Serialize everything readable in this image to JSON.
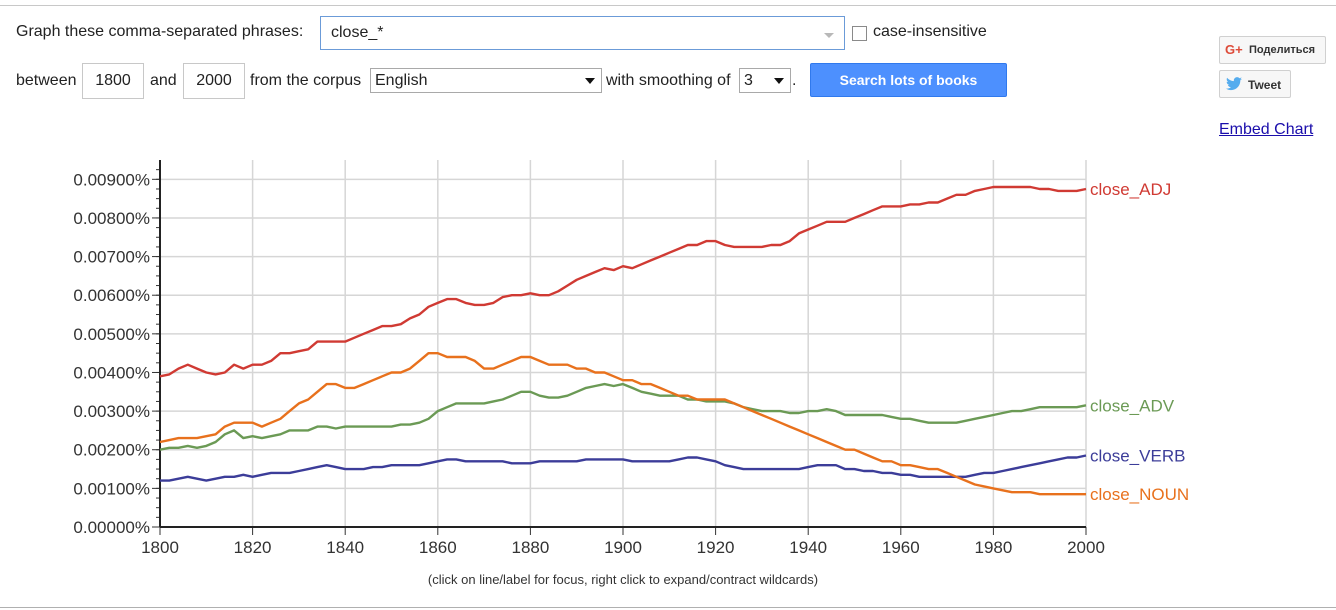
{
  "form": {
    "phrases_label": "Graph these comma-separated phrases:",
    "phrases_value": "close_*",
    "case_insensitive_label": "case-insensitive",
    "between_label": "between",
    "year_start": "1800",
    "and_label": "and",
    "year_end": "2000",
    "corpus_label": "from the corpus",
    "corpus_value": "English",
    "smoothing_label": "with smoothing of",
    "smoothing_value": "3",
    "period": ".",
    "search_button": "Search lots of books"
  },
  "share": {
    "gplus_icon_text": "G+",
    "gplus_label": "Поделиться",
    "tweet_label": "Tweet",
    "embed_label": "Embed Chart"
  },
  "footnote": "(click on line/label for focus, right click to expand/contract wildcards)",
  "chart_data": {
    "type": "line",
    "xlim": [
      1800,
      2000
    ],
    "ylim": [
      0,
      0.0095
    ],
    "x_ticks": [
      1800,
      1820,
      1840,
      1860,
      1880,
      1900,
      1920,
      1940,
      1960,
      1980,
      2000
    ],
    "x_tick_labels": [
      "1800",
      "1820",
      "1840",
      "1860",
      "1880",
      "1900",
      "1920",
      "1940",
      "1960",
      "1980",
      "2000"
    ],
    "y_ticks": [
      0,
      0.001,
      0.002,
      0.003,
      0.004,
      0.005,
      0.006,
      0.007,
      0.008,
      0.009
    ],
    "y_tick_labels": [
      "0.00000%",
      "0.00100%",
      "0.00200%",
      "0.00300%",
      "0.00400%",
      "0.00500%",
      "0.00600%",
      "0.00700%",
      "0.00800%",
      "0.00900%"
    ],
    "grid": true,
    "legend": "right-inline",
    "series": [
      {
        "name": "close_ADJ",
        "color": "#d03a33",
        "x": [
          1800,
          1802,
          1804,
          1806,
          1808,
          1810,
          1812,
          1814,
          1816,
          1818,
          1820,
          1822,
          1824,
          1826,
          1828,
          1830,
          1832,
          1834,
          1836,
          1838,
          1840,
          1842,
          1844,
          1846,
          1848,
          1850,
          1852,
          1854,
          1856,
          1858,
          1860,
          1862,
          1864,
          1866,
          1868,
          1870,
          1872,
          1874,
          1876,
          1878,
          1880,
          1882,
          1884,
          1886,
          1888,
          1890,
          1892,
          1894,
          1896,
          1898,
          1900,
          1902,
          1904,
          1906,
          1908,
          1910,
          1912,
          1914,
          1916,
          1918,
          1920,
          1922,
          1924,
          1926,
          1928,
          1930,
          1932,
          1934,
          1936,
          1938,
          1940,
          1942,
          1944,
          1946,
          1948,
          1950,
          1952,
          1954,
          1956,
          1958,
          1960,
          1962,
          1964,
          1966,
          1968,
          1970,
          1972,
          1974,
          1976,
          1978,
          1980,
          1982,
          1984,
          1986,
          1988,
          1990,
          1992,
          1994,
          1996,
          1998,
          2000
        ],
        "y": [
          0.0039,
          0.00395,
          0.0041,
          0.0042,
          0.0041,
          0.004,
          0.00395,
          0.004,
          0.0042,
          0.0041,
          0.0042,
          0.0042,
          0.0043,
          0.0045,
          0.0045,
          0.00455,
          0.0046,
          0.0048,
          0.0048,
          0.0048,
          0.0048,
          0.0049,
          0.005,
          0.0051,
          0.0052,
          0.0052,
          0.00525,
          0.0054,
          0.0055,
          0.0057,
          0.0058,
          0.0059,
          0.0059,
          0.0058,
          0.00575,
          0.00575,
          0.0058,
          0.00595,
          0.006,
          0.006,
          0.00605,
          0.006,
          0.006,
          0.0061,
          0.00625,
          0.0064,
          0.0065,
          0.0066,
          0.0067,
          0.00665,
          0.00675,
          0.0067,
          0.0068,
          0.0069,
          0.007,
          0.0071,
          0.0072,
          0.0073,
          0.0073,
          0.0074,
          0.0074,
          0.0073,
          0.00725,
          0.00725,
          0.00725,
          0.00725,
          0.0073,
          0.0073,
          0.0074,
          0.0076,
          0.0077,
          0.0078,
          0.0079,
          0.0079,
          0.0079,
          0.008,
          0.0081,
          0.0082,
          0.0083,
          0.0083,
          0.0083,
          0.00835,
          0.00835,
          0.0084,
          0.0084,
          0.0085,
          0.0086,
          0.0086,
          0.0087,
          0.00875,
          0.0088,
          0.0088,
          0.0088,
          0.0088,
          0.0088,
          0.00875,
          0.00875,
          0.0087,
          0.0087,
          0.0087,
          0.00875
        ]
      },
      {
        "name": "close_ADV",
        "color": "#6b9a55",
        "x": [
          1800,
          1802,
          1804,
          1806,
          1808,
          1810,
          1812,
          1814,
          1816,
          1818,
          1820,
          1822,
          1824,
          1826,
          1828,
          1830,
          1832,
          1834,
          1836,
          1838,
          1840,
          1842,
          1844,
          1846,
          1848,
          1850,
          1852,
          1854,
          1856,
          1858,
          1860,
          1862,
          1864,
          1866,
          1868,
          1870,
          1872,
          1874,
          1876,
          1878,
          1880,
          1882,
          1884,
          1886,
          1888,
          1890,
          1892,
          1894,
          1896,
          1898,
          1900,
          1902,
          1904,
          1906,
          1908,
          1910,
          1912,
          1914,
          1916,
          1918,
          1920,
          1922,
          1924,
          1926,
          1928,
          1930,
          1932,
          1934,
          1936,
          1938,
          1940,
          1942,
          1944,
          1946,
          1948,
          1950,
          1952,
          1954,
          1956,
          1958,
          1960,
          1962,
          1964,
          1966,
          1968,
          1970,
          1972,
          1974,
          1976,
          1978,
          1980,
          1982,
          1984,
          1986,
          1988,
          1990,
          1992,
          1994,
          1996,
          1998,
          2000
        ],
        "y": [
          0.002,
          0.00205,
          0.00205,
          0.0021,
          0.00205,
          0.0021,
          0.0022,
          0.0024,
          0.0025,
          0.0023,
          0.00235,
          0.0023,
          0.00235,
          0.0024,
          0.0025,
          0.0025,
          0.0025,
          0.0026,
          0.0026,
          0.00255,
          0.0026,
          0.0026,
          0.0026,
          0.0026,
          0.0026,
          0.0026,
          0.00265,
          0.00265,
          0.0027,
          0.0028,
          0.003,
          0.0031,
          0.0032,
          0.0032,
          0.0032,
          0.0032,
          0.00325,
          0.0033,
          0.0034,
          0.0035,
          0.0035,
          0.0034,
          0.00335,
          0.00335,
          0.0034,
          0.0035,
          0.0036,
          0.00365,
          0.0037,
          0.00365,
          0.0037,
          0.0036,
          0.0035,
          0.00345,
          0.0034,
          0.0034,
          0.0034,
          0.0033,
          0.0033,
          0.00325,
          0.00325,
          0.00325,
          0.0032,
          0.0031,
          0.00305,
          0.003,
          0.003,
          0.003,
          0.00295,
          0.00295,
          0.003,
          0.003,
          0.00305,
          0.003,
          0.0029,
          0.0029,
          0.0029,
          0.0029,
          0.0029,
          0.00285,
          0.0028,
          0.0028,
          0.00275,
          0.0027,
          0.0027,
          0.0027,
          0.0027,
          0.00275,
          0.0028,
          0.00285,
          0.0029,
          0.00295,
          0.003,
          0.003,
          0.00305,
          0.0031,
          0.0031,
          0.0031,
          0.0031,
          0.0031,
          0.00315
        ]
      },
      {
        "name": "close_VERB",
        "color": "#3c3d99",
        "x": [
          1800,
          1802,
          1804,
          1806,
          1808,
          1810,
          1812,
          1814,
          1816,
          1818,
          1820,
          1822,
          1824,
          1826,
          1828,
          1830,
          1832,
          1834,
          1836,
          1838,
          1840,
          1842,
          1844,
          1846,
          1848,
          1850,
          1852,
          1854,
          1856,
          1858,
          1860,
          1862,
          1864,
          1866,
          1868,
          1870,
          1872,
          1874,
          1876,
          1878,
          1880,
          1882,
          1884,
          1886,
          1888,
          1890,
          1892,
          1894,
          1896,
          1898,
          1900,
          1902,
          1904,
          1906,
          1908,
          1910,
          1912,
          1914,
          1916,
          1918,
          1920,
          1922,
          1924,
          1926,
          1928,
          1930,
          1932,
          1934,
          1936,
          1938,
          1940,
          1942,
          1944,
          1946,
          1948,
          1950,
          1952,
          1954,
          1956,
          1958,
          1960,
          1962,
          1964,
          1966,
          1968,
          1970,
          1972,
          1974,
          1976,
          1978,
          1980,
          1982,
          1984,
          1986,
          1988,
          1990,
          1992,
          1994,
          1996,
          1998,
          2000
        ],
        "y": [
          0.0012,
          0.0012,
          0.00125,
          0.0013,
          0.00125,
          0.0012,
          0.00125,
          0.0013,
          0.0013,
          0.00135,
          0.0013,
          0.00135,
          0.0014,
          0.0014,
          0.0014,
          0.00145,
          0.0015,
          0.00155,
          0.0016,
          0.00155,
          0.0015,
          0.0015,
          0.0015,
          0.00155,
          0.00155,
          0.0016,
          0.0016,
          0.0016,
          0.0016,
          0.00165,
          0.0017,
          0.00175,
          0.00175,
          0.0017,
          0.0017,
          0.0017,
          0.0017,
          0.0017,
          0.00165,
          0.00165,
          0.00165,
          0.0017,
          0.0017,
          0.0017,
          0.0017,
          0.0017,
          0.00175,
          0.00175,
          0.00175,
          0.00175,
          0.00175,
          0.0017,
          0.0017,
          0.0017,
          0.0017,
          0.0017,
          0.00175,
          0.0018,
          0.0018,
          0.00175,
          0.0017,
          0.0016,
          0.00155,
          0.0015,
          0.0015,
          0.0015,
          0.0015,
          0.0015,
          0.0015,
          0.0015,
          0.00155,
          0.0016,
          0.0016,
          0.0016,
          0.0015,
          0.0015,
          0.00145,
          0.00145,
          0.0014,
          0.0014,
          0.00135,
          0.00135,
          0.0013,
          0.0013,
          0.0013,
          0.0013,
          0.0013,
          0.0013,
          0.00135,
          0.0014,
          0.0014,
          0.00145,
          0.0015,
          0.00155,
          0.0016,
          0.00165,
          0.0017,
          0.00175,
          0.0018,
          0.0018,
          0.00185
        ]
      },
      {
        "name": "close_NOUN",
        "color": "#e8711d",
        "x": [
          1800,
          1802,
          1804,
          1806,
          1808,
          1810,
          1812,
          1814,
          1816,
          1818,
          1820,
          1822,
          1824,
          1826,
          1828,
          1830,
          1832,
          1834,
          1836,
          1838,
          1840,
          1842,
          1844,
          1846,
          1848,
          1850,
          1852,
          1854,
          1856,
          1858,
          1860,
          1862,
          1864,
          1866,
          1868,
          1870,
          1872,
          1874,
          1876,
          1878,
          1880,
          1882,
          1884,
          1886,
          1888,
          1890,
          1892,
          1894,
          1896,
          1898,
          1900,
          1902,
          1904,
          1906,
          1908,
          1910,
          1912,
          1914,
          1916,
          1918,
          1920,
          1922,
          1924,
          1926,
          1928,
          1930,
          1932,
          1934,
          1936,
          1938,
          1940,
          1942,
          1944,
          1946,
          1948,
          1950,
          1952,
          1954,
          1956,
          1958,
          1960,
          1962,
          1964,
          1966,
          1968,
          1970,
          1972,
          1974,
          1976,
          1978,
          1980,
          1982,
          1984,
          1986,
          1988,
          1990,
          1992,
          1994,
          1996,
          1998,
          2000
        ],
        "y": [
          0.0022,
          0.00225,
          0.0023,
          0.0023,
          0.0023,
          0.00235,
          0.0024,
          0.0026,
          0.0027,
          0.0027,
          0.0027,
          0.0026,
          0.0027,
          0.0028,
          0.003,
          0.0032,
          0.0033,
          0.0035,
          0.0037,
          0.0037,
          0.0036,
          0.0036,
          0.0037,
          0.0038,
          0.0039,
          0.004,
          0.004,
          0.0041,
          0.0043,
          0.0045,
          0.0045,
          0.0044,
          0.0044,
          0.0044,
          0.0043,
          0.0041,
          0.0041,
          0.0042,
          0.0043,
          0.0044,
          0.0044,
          0.0043,
          0.0042,
          0.0042,
          0.0042,
          0.0041,
          0.0041,
          0.004,
          0.004,
          0.0039,
          0.0038,
          0.0038,
          0.0037,
          0.0037,
          0.0036,
          0.0035,
          0.0034,
          0.0034,
          0.0033,
          0.0033,
          0.0033,
          0.0033,
          0.0032,
          0.0031,
          0.003,
          0.0029,
          0.0028,
          0.0027,
          0.0026,
          0.0025,
          0.0024,
          0.0023,
          0.0022,
          0.0021,
          0.002,
          0.002,
          0.0019,
          0.0018,
          0.0017,
          0.0017,
          0.0016,
          0.0016,
          0.00155,
          0.0015,
          0.0015,
          0.0014,
          0.0013,
          0.0012,
          0.0011,
          0.00105,
          0.001,
          0.00095,
          0.0009,
          0.0009,
          0.0009,
          0.00085,
          0.00085,
          0.00085,
          0.00085,
          0.00085,
          0.00085
        ]
      }
    ]
  }
}
